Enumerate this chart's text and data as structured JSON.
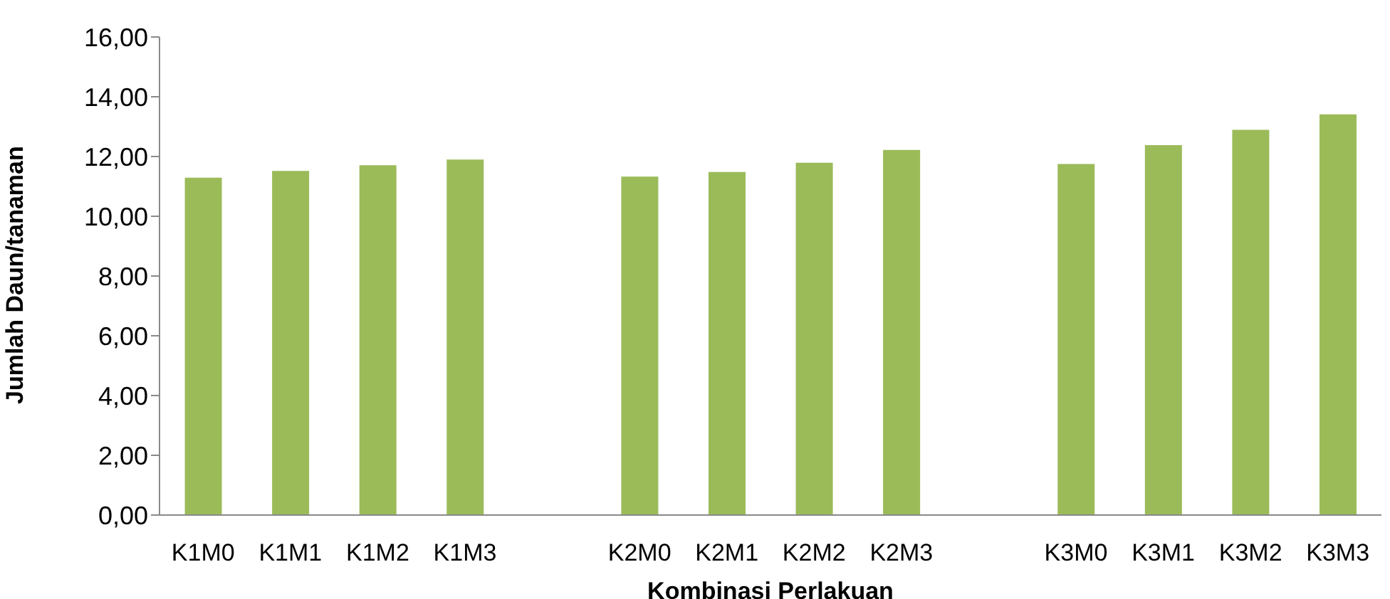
{
  "chart_data": {
    "type": "bar",
    "xlabel": "Kombinasi Perlakuan",
    "ylabel": "Jumlah Daun/tanaman",
    "categories": [
      "K1M0",
      "K1M1",
      "K1M2",
      "K1M3",
      null,
      "K2M0",
      "K2M1",
      "K2M2",
      "K2M3",
      null,
      "K3M0",
      "K3M1",
      "K3M2",
      "K3M3"
    ],
    "values": [
      11.29,
      11.52,
      11.71,
      11.9,
      null,
      11.33,
      11.48,
      11.79,
      12.22,
      null,
      11.75,
      12.38,
      12.89,
      13.41
    ],
    "color": "#9bbb59",
    "ylim": [
      0,
      16
    ],
    "yticks": [
      {
        "value": 0,
        "label": "0,00"
      },
      {
        "value": 2,
        "label": "2,00"
      },
      {
        "value": 4,
        "label": "4,00"
      },
      {
        "value": 6,
        "label": "6,00"
      },
      {
        "value": 8,
        "label": "8,00"
      },
      {
        "value": 10,
        "label": "10,00"
      },
      {
        "value": 12,
        "label": "12,00"
      },
      {
        "value": 14,
        "label": "14,00"
      },
      {
        "value": 16,
        "label": "16,00"
      }
    ],
    "grid": false,
    "legend": false
  }
}
